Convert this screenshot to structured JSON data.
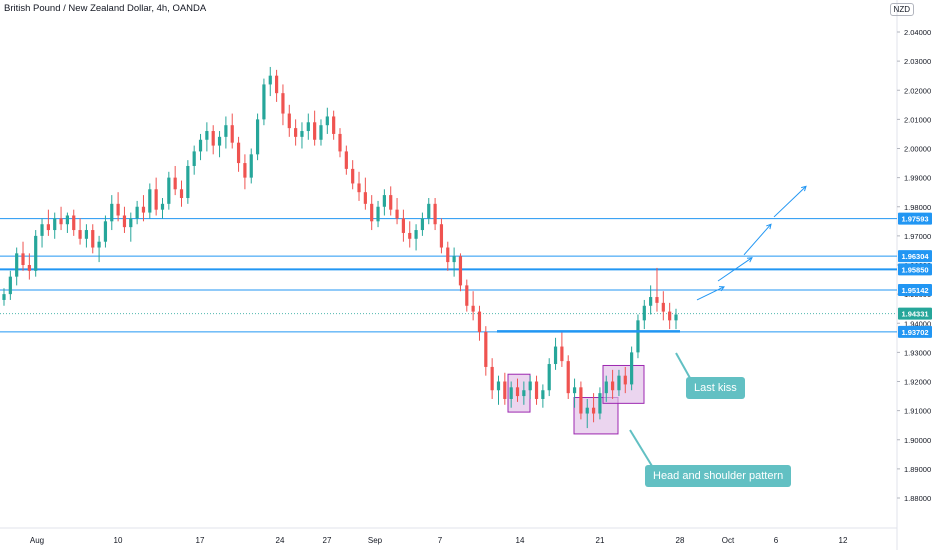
{
  "header": {
    "symbol_title": "British Pound / New Zealand Dollar, 4h, OANDA",
    "currency": "NZD"
  },
  "annotations": {
    "last_kiss": "Last kiss",
    "head_shoulder": "Head and shoulder pattern"
  },
  "colors": {
    "up": "#26a69a",
    "down": "#ef5350",
    "level_line": "#2196f3",
    "label_bg": "#2196f3",
    "last_price_bg": "#26a69a",
    "box_fill": "#e1bee7",
    "box_stroke": "#9c27b0",
    "callout_bg": "#62c0c3"
  },
  "chart_data": {
    "type": "candlestick",
    "title": "British Pound / New Zealand Dollar, 4h, OANDA",
    "xlabel": "",
    "ylabel": "",
    "ylim": [
      1.876,
      2.045
    ],
    "y_ticks": [
      1.88,
      1.89,
      1.9,
      1.91,
      1.92,
      1.93,
      1.94,
      1.95,
      1.96,
      1.97,
      1.98,
      1.99,
      2.0,
      2.01,
      2.02,
      2.03,
      2.04
    ],
    "x_ticks": [
      "Aug",
      "10",
      "17",
      "24",
      "27",
      "Sep",
      "7",
      "14",
      "21",
      "28",
      "Oct",
      "6",
      "12"
    ],
    "horizontal_levels": [
      {
        "label": "1.97593",
        "value": 1.97593,
        "bold": false
      },
      {
        "label": "1.96304",
        "value": 1.96304,
        "bold": false
      },
      {
        "label": "1.95850",
        "value": 1.9585,
        "bold": true
      },
      {
        "label": "1.95142",
        "value": 1.95142,
        "bold": false
      },
      {
        "label": "1.93702",
        "value": 1.93702,
        "bold": false
      }
    ],
    "last_price": {
      "label": "1.94331",
      "value": 1.94331
    },
    "neckline": {
      "value": 1.9372,
      "from_x": "Sep 10",
      "to_x": "Sep 27"
    },
    "pattern_boxes": [
      {
        "name": "left-shoulder",
        "y_range": [
          1.9095,
          1.9225
        ]
      },
      {
        "name": "head",
        "y_range": [
          1.902,
          1.9145
        ]
      },
      {
        "name": "right-shoulder",
        "y_range": [
          1.9125,
          1.9255
        ]
      }
    ],
    "projection_arrows": [
      {
        "from": 1.948,
        "to": 1.9525
      },
      {
        "from": 1.9545,
        "to": 1.9625
      },
      {
        "from": 1.9635,
        "to": 1.974
      },
      {
        "from": 1.9765,
        "to": 1.987
      }
    ],
    "series": [
      {
        "values": [
          {
            "o": 1.948,
            "h": 1.952,
            "l": 1.946,
            "c": 1.95
          },
          {
            "o": 1.95,
            "h": 1.958,
            "l": 1.948,
            "c": 1.956
          },
          {
            "o": 1.956,
            "h": 1.966,
            "l": 1.953,
            "c": 1.964
          },
          {
            "o": 1.964,
            "h": 1.968,
            "l": 1.958,
            "c": 1.96
          },
          {
            "o": 1.96,
            "h": 1.964,
            "l": 1.955,
            "c": 1.958
          },
          {
            "o": 1.958,
            "h": 1.972,
            "l": 1.956,
            "c": 1.97
          },
          {
            "o": 1.97,
            "h": 1.976,
            "l": 1.966,
            "c": 1.974
          },
          {
            "o": 1.974,
            "h": 1.979,
            "l": 1.97,
            "c": 1.972
          },
          {
            "o": 1.972,
            "h": 1.978,
            "l": 1.969,
            "c": 1.976
          },
          {
            "o": 1.976,
            "h": 1.98,
            "l": 1.972,
            "c": 1.974
          },
          {
            "o": 1.974,
            "h": 1.978,
            "l": 1.971,
            "c": 1.977
          },
          {
            "o": 1.977,
            "h": 1.979,
            "l": 1.97,
            "c": 1.972
          },
          {
            "o": 1.972,
            "h": 1.976,
            "l": 1.967,
            "c": 1.969
          },
          {
            "o": 1.969,
            "h": 1.974,
            "l": 1.966,
            "c": 1.972
          },
          {
            "o": 1.972,
            "h": 1.974,
            "l": 1.964,
            "c": 1.966
          },
          {
            "o": 1.966,
            "h": 1.97,
            "l": 1.961,
            "c": 1.968
          },
          {
            "o": 1.968,
            "h": 1.977,
            "l": 1.966,
            "c": 1.975
          },
          {
            "o": 1.975,
            "h": 1.984,
            "l": 1.972,
            "c": 1.981
          },
          {
            "o": 1.981,
            "h": 1.985,
            "l": 1.975,
            "c": 1.977
          },
          {
            "o": 1.977,
            "h": 1.98,
            "l": 1.971,
            "c": 1.973
          },
          {
            "o": 1.973,
            "h": 1.978,
            "l": 1.968,
            "c": 1.976
          },
          {
            "o": 1.976,
            "h": 1.982,
            "l": 1.974,
            "c": 1.98
          },
          {
            "o": 1.98,
            "h": 1.984,
            "l": 1.975,
            "c": 1.978
          },
          {
            "o": 1.978,
            "h": 1.988,
            "l": 1.976,
            "c": 1.986
          },
          {
            "o": 1.986,
            "h": 1.99,
            "l": 1.977,
            "c": 1.979
          },
          {
            "o": 1.979,
            "h": 1.983,
            "l": 1.976,
            "c": 1.981
          },
          {
            "o": 1.981,
            "h": 1.992,
            "l": 1.979,
            "c": 1.99
          },
          {
            "o": 1.99,
            "h": 1.994,
            "l": 1.984,
            "c": 1.986
          },
          {
            "o": 1.986,
            "h": 1.989,
            "l": 1.98,
            "c": 1.983
          },
          {
            "o": 1.983,
            "h": 1.996,
            "l": 1.981,
            "c": 1.994
          },
          {
            "o": 1.994,
            "h": 2.001,
            "l": 1.991,
            "c": 1.999
          },
          {
            "o": 1.999,
            "h": 2.005,
            "l": 1.996,
            "c": 2.003
          },
          {
            "o": 2.003,
            "h": 2.009,
            "l": 1.999,
            "c": 2.006
          },
          {
            "o": 2.006,
            "h": 2.008,
            "l": 1.998,
            "c": 2.001
          },
          {
            "o": 2.001,
            "h": 2.006,
            "l": 1.997,
            "c": 2.004
          },
          {
            "o": 2.004,
            "h": 2.011,
            "l": 2.0,
            "c": 2.008
          },
          {
            "o": 2.008,
            "h": 2.012,
            "l": 2.0,
            "c": 2.002
          },
          {
            "o": 2.002,
            "h": 2.004,
            "l": 1.992,
            "c": 1.995
          },
          {
            "o": 1.995,
            "h": 1.998,
            "l": 1.986,
            "c": 1.99
          },
          {
            "o": 1.99,
            "h": 2.0,
            "l": 1.988,
            "c": 1.998
          },
          {
            "o": 1.998,
            "h": 2.012,
            "l": 1.996,
            "c": 2.01
          },
          {
            "o": 2.01,
            "h": 2.024,
            "l": 2.008,
            "c": 2.022
          },
          {
            "o": 2.022,
            "h": 2.028,
            "l": 2.018,
            "c": 2.025
          },
          {
            "o": 2.025,
            "h": 2.027,
            "l": 2.016,
            "c": 2.019
          },
          {
            "o": 2.019,
            "h": 2.022,
            "l": 2.008,
            "c": 2.012
          },
          {
            "o": 2.012,
            "h": 2.015,
            "l": 2.004,
            "c": 2.007
          },
          {
            "o": 2.007,
            "h": 2.01,
            "l": 2.001,
            "c": 2.004
          },
          {
            "o": 2.004,
            "h": 2.009,
            "l": 2.0,
            "c": 2.006
          },
          {
            "o": 2.006,
            "h": 2.012,
            "l": 2.003,
            "c": 2.009
          },
          {
            "o": 2.009,
            "h": 2.013,
            "l": 2.001,
            "c": 2.003
          },
          {
            "o": 2.003,
            "h": 2.01,
            "l": 2.001,
            "c": 2.008
          },
          {
            "o": 2.008,
            "h": 2.014,
            "l": 2.005,
            "c": 2.011
          },
          {
            "o": 2.011,
            "h": 2.013,
            "l": 2.003,
            "c": 2.005
          },
          {
            "o": 2.005,
            "h": 2.007,
            "l": 1.997,
            "c": 1.999
          },
          {
            "o": 1.999,
            "h": 2.001,
            "l": 1.991,
            "c": 1.993
          },
          {
            "o": 1.993,
            "h": 1.996,
            "l": 1.986,
            "c": 1.988
          },
          {
            "o": 1.988,
            "h": 1.992,
            "l": 1.982,
            "c": 1.985
          },
          {
            "o": 1.985,
            "h": 1.99,
            "l": 1.979,
            "c": 1.981
          },
          {
            "o": 1.981,
            "h": 1.984,
            "l": 1.972,
            "c": 1.975
          },
          {
            "o": 1.975,
            "h": 1.982,
            "l": 1.973,
            "c": 1.98
          },
          {
            "o": 1.98,
            "h": 1.986,
            "l": 1.977,
            "c": 1.984
          },
          {
            "o": 1.984,
            "h": 1.987,
            "l": 1.977,
            "c": 1.979
          },
          {
            "o": 1.979,
            "h": 1.983,
            "l": 1.974,
            "c": 1.976
          },
          {
            "o": 1.976,
            "h": 1.979,
            "l": 1.968,
            "c": 1.971
          },
          {
            "o": 1.971,
            "h": 1.975,
            "l": 1.966,
            "c": 1.969
          },
          {
            "o": 1.969,
            "h": 1.974,
            "l": 1.965,
            "c": 1.972
          },
          {
            "o": 1.972,
            "h": 1.978,
            "l": 1.97,
            "c": 1.976
          },
          {
            "o": 1.976,
            "h": 1.983,
            "l": 1.974,
            "c": 1.981
          },
          {
            "o": 1.981,
            "h": 1.983,
            "l": 1.972,
            "c": 1.974
          },
          {
            "o": 1.974,
            "h": 1.976,
            "l": 1.964,
            "c": 1.966
          },
          {
            "o": 1.966,
            "h": 1.968,
            "l": 1.958,
            "c": 1.961
          },
          {
            "o": 1.961,
            "h": 1.966,
            "l": 1.956,
            "c": 1.963
          },
          {
            "o": 1.963,
            "h": 1.964,
            "l": 1.951,
            "c": 1.953
          },
          {
            "o": 1.953,
            "h": 1.955,
            "l": 1.944,
            "c": 1.946
          },
          {
            "o": 1.946,
            "h": 1.951,
            "l": 1.941,
            "c": 1.944
          },
          {
            "o": 1.944,
            "h": 1.946,
            "l": 1.934,
            "c": 1.937
          },
          {
            "o": 1.937,
            "h": 1.939,
            "l": 1.922,
            "c": 1.925
          },
          {
            "o": 1.925,
            "h": 1.928,
            "l": 1.914,
            "c": 1.917
          },
          {
            "o": 1.917,
            "h": 1.922,
            "l": 1.912,
            "c": 1.92
          },
          {
            "o": 1.92,
            "h": 1.923,
            "l": 1.912,
            "c": 1.914
          },
          {
            "o": 1.914,
            "h": 1.92,
            "l": 1.911,
            "c": 1.918
          },
          {
            "o": 1.918,
            "h": 1.921,
            "l": 1.913,
            "c": 1.915
          },
          {
            "o": 1.915,
            "h": 1.92,
            "l": 1.912,
            "c": 1.917
          },
          {
            "o": 1.917,
            "h": 1.922,
            "l": 1.914,
            "c": 1.92
          },
          {
            "o": 1.92,
            "h": 1.922,
            "l": 1.912,
            "c": 1.914
          },
          {
            "o": 1.914,
            "h": 1.919,
            "l": 1.911,
            "c": 1.917
          },
          {
            "o": 1.917,
            "h": 1.928,
            "l": 1.915,
            "c": 1.926
          },
          {
            "o": 1.926,
            "h": 1.935,
            "l": 1.924,
            "c": 1.932
          },
          {
            "o": 1.932,
            "h": 1.937,
            "l": 1.925,
            "c": 1.927
          },
          {
            "o": 1.927,
            "h": 1.929,
            "l": 1.914,
            "c": 1.916
          },
          {
            "o": 1.916,
            "h": 1.921,
            "l": 1.911,
            "c": 1.918
          },
          {
            "o": 1.918,
            "h": 1.92,
            "l": 1.907,
            "c": 1.909
          },
          {
            "o": 1.909,
            "h": 1.914,
            "l": 1.904,
            "c": 1.911
          },
          {
            "o": 1.911,
            "h": 1.916,
            "l": 1.906,
            "c": 1.909
          },
          {
            "o": 1.909,
            "h": 1.918,
            "l": 1.907,
            "c": 1.916
          },
          {
            "o": 1.916,
            "h": 1.922,
            "l": 1.913,
            "c": 1.92
          },
          {
            "o": 1.92,
            "h": 1.924,
            "l": 1.914,
            "c": 1.917
          },
          {
            "o": 1.917,
            "h": 1.924,
            "l": 1.915,
            "c": 1.922
          },
          {
            "o": 1.922,
            "h": 1.925,
            "l": 1.916,
            "c": 1.919
          },
          {
            "o": 1.919,
            "h": 1.932,
            "l": 1.917,
            "c": 1.93
          },
          {
            "o": 1.93,
            "h": 1.943,
            "l": 1.928,
            "c": 1.941
          },
          {
            "o": 1.941,
            "h": 1.948,
            "l": 1.938,
            "c": 1.946
          },
          {
            "o": 1.946,
            "h": 1.953,
            "l": 1.943,
            "c": 1.949
          },
          {
            "o": 1.949,
            "h": 1.959,
            "l": 1.944,
            "c": 1.947
          },
          {
            "o": 1.947,
            "h": 1.951,
            "l": 1.941,
            "c": 1.944
          },
          {
            "o": 1.944,
            "h": 1.947,
            "l": 1.938,
            "c": 1.941
          },
          {
            "o": 1.941,
            "h": 1.945,
            "l": 1.938,
            "c": 1.943
          }
        ]
      }
    ]
  }
}
